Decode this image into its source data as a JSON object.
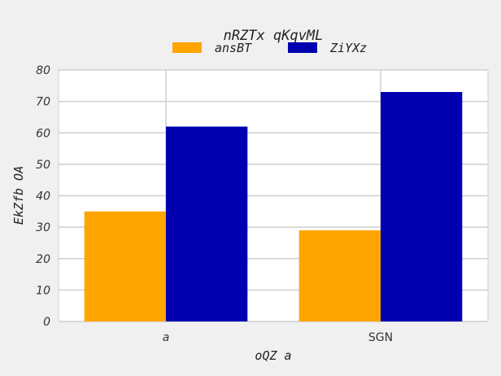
{
  "chart_data": {
    "type": "bar",
    "title": "nRZTx qKqvML",
    "xlabel": "oQZ  a",
    "ylabel": "EkZfb OA",
    "categories": [
      "a",
      "SGN"
    ],
    "series": [
      {
        "name": "ansBT",
        "values": [
          35,
          29
        ],
        "color": "#ffa500"
      },
      {
        "name": "ZiYXz",
        "values": [
          62,
          73
        ],
        "color": "#0000b0"
      }
    ],
    "ylim": [
      0,
      80
    ],
    "yticks": [
      0,
      10,
      20,
      30,
      40,
      50,
      60,
      70,
      80
    ],
    "grid": true,
    "legend_position": "top-center"
  }
}
